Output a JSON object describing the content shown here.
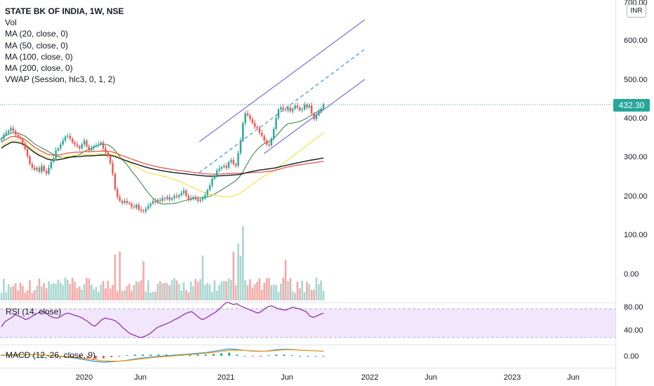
{
  "legend": {
    "title": "STATE BK OF INDIA, 1W, NSE",
    "vol": "Vol",
    "ma20": "MA (20, close, 0)",
    "ma50": "MA (50, close, 0)",
    "ma100": "MA (100, close, 0)",
    "ma200": "MA (200, close, 0)",
    "vwap": "VWAP (Session, hlc3, 0, 1, 2)"
  },
  "currency": "INR",
  "last_price": "432.30",
  "rsi_label": "RSI (14, close)",
  "macd_label": "MACD (12, 26, close, 9)",
  "colors": {
    "up": "#26a69a",
    "down": "#ef5350",
    "ma20": "#2e7d32",
    "ma50": "#f2e24d",
    "ma100": "#e0574f",
    "ma200": "#131722",
    "channel": "#7b6fd6",
    "channel_mid": "#3d8fe0",
    "rsi_line": "#8e24aa",
    "rsi_band": "#f1e6fb",
    "macd_line": "#2196f3",
    "signal_line": "#ff9800"
  },
  "chart_data": [
    {
      "type": "candlestick",
      "title": "STATE BK OF INDIA, 1W, NSE",
      "x_labels": [
        "2020",
        "Jun",
        "2021",
        "Jun",
        "2022",
        "Jun",
        "2023",
        "Jun"
      ],
      "y_ticks": [
        "700.00",
        "600.00",
        "500.00",
        "400.00",
        "300.00",
        "200.00"
      ],
      "ylim": [
        160,
        705
      ],
      "last_price": 432.3,
      "weekly_closes": [
        345,
        355,
        360,
        365,
        372,
        365,
        355,
        350,
        345,
        332,
        318,
        300,
        280,
        270,
        265,
        270,
        260,
        275,
        262,
        255,
        270,
        285,
        295,
        315,
        320,
        330,
        340,
        350,
        352,
        345,
        335,
        330,
        325,
        320,
        330,
        340,
        325,
        315,
        320,
        325,
        328,
        330,
        335,
        320,
        310,
        300,
        282,
        255,
        215,
        195,
        185,
        180,
        185,
        180,
        178,
        170,
        168,
        175,
        163,
        160,
        158,
        165,
        172,
        178,
        185,
        182,
        188,
        185,
        192,
        190,
        195,
        188,
        192,
        198,
        195,
        200,
        205,
        212,
        198,
        188,
        192,
        195,
        190,
        185,
        188,
        192,
        200,
        213,
        225,
        242,
        250,
        263,
        268,
        272,
        275,
        270,
        285,
        290,
        280,
        275,
        308,
        340,
        385,
        410,
        405,
        395,
        385,
        375,
        372,
        360,
        352,
        340,
        330,
        328,
        345,
        370,
        398,
        420,
        425,
        420,
        418,
        425,
        415,
        422,
        430,
        425,
        418,
        420,
        432,
        425,
        430,
        410,
        395,
        405,
        415,
        422,
        432.3
      ],
      "moving_averages": [
        {
          "name": "MA (20, close, 0)",
          "values_first_last": [
            345,
            432
          ]
        },
        {
          "name": "MA (50, close, 0)",
          "values_first_last": [
            300,
            345
          ]
        },
        {
          "name": "MA (100, close, 0)",
          "values_first_last": [
            305,
            290
          ]
        },
        {
          "name": "MA (200, close, 0)",
          "values_first_last": [
            280,
            290
          ]
        }
      ],
      "channel": {
        "start": [
          "2020-10",
          332
        ],
        "end": [
          "2021-12",
          655
        ]
      }
    },
    {
      "type": "bar",
      "title": "Vol",
      "y_ticks": [
        "100.00",
        "0.00"
      ],
      "values_peak": 120
    },
    {
      "type": "line",
      "title": "RSI (14, close)",
      "y_ticks": [
        "80.00",
        "40.00"
      ],
      "ylim": [
        20,
        90
      ],
      "bands": [
        30,
        70
      ],
      "values": [
        45,
        52,
        55,
        58,
        62,
        60,
        58,
        55,
        57,
        60,
        63,
        65,
        66,
        64,
        60,
        58,
        57,
        59,
        62,
        64,
        63,
        61,
        60,
        58,
        55,
        52,
        48,
        46,
        50,
        55,
        57,
        56,
        55,
        53,
        49,
        44,
        40,
        36,
        34,
        32,
        30,
        31,
        33,
        36,
        40,
        44,
        46,
        48,
        50,
        52,
        55,
        57,
        60,
        63,
        65,
        66,
        62,
        58,
        55,
        57,
        60,
        63,
        66,
        70,
        75,
        79,
        78,
        76,
        77,
        74,
        72,
        70,
        68,
        66,
        64,
        66,
        70,
        73,
        74,
        72,
        70,
        69,
        68,
        70,
        72,
        71,
        70,
        68,
        66,
        60,
        58,
        60,
        62,
        64
      ]
    },
    {
      "type": "line",
      "title": "MACD (12, 26, close, 9)",
      "y_ticks": [
        "0.00"
      ],
      "series": [
        {
          "name": "MACD",
          "values": [
            2,
            3,
            4,
            5,
            4,
            3,
            1,
            -1,
            -3,
            -6,
            -10,
            -14,
            -18,
            -20,
            -19,
            -17,
            -14,
            -10,
            -7,
            -4,
            -2,
            0,
            2,
            4,
            6,
            8,
            10,
            14,
            18,
            22,
            20,
            17,
            15,
            14,
            16,
            19,
            21,
            20,
            18,
            17,
            16,
            14
          ]
        },
        {
          "name": "Signal",
          "values": [
            1,
            2,
            3,
            4,
            4,
            3,
            2,
            0,
            -2,
            -4,
            -7,
            -10,
            -13,
            -16,
            -17,
            -17,
            -15,
            -12,
            -9,
            -6,
            -4,
            -2,
            0,
            2,
            4,
            6,
            8,
            11,
            14,
            17,
            18,
            17,
            16,
            15,
            15,
            17,
            19,
            19,
            18,
            17,
            16,
            15
          ]
        }
      ]
    }
  ]
}
